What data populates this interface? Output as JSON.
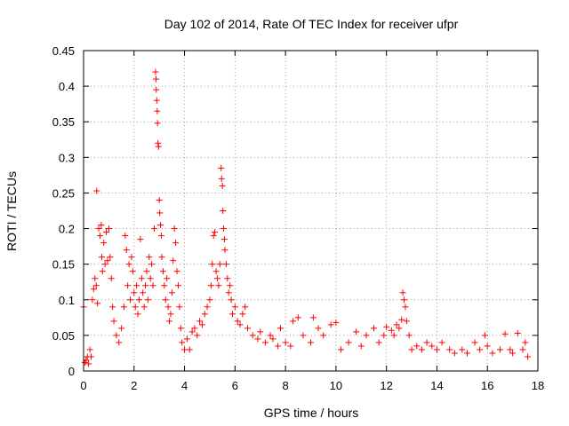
{
  "chart_data": {
    "type": "scatter",
    "title": "Day 102 of 2014, Rate Of TEC Index for receiver ufpr",
    "xlabel": "GPS time / hours",
    "ylabel": "ROTI / TECUs",
    "xlim": [
      0,
      18
    ],
    "ylim": [
      0,
      0.45
    ],
    "xticks": [
      "0",
      "2",
      "4",
      "6",
      "8",
      "10",
      "12",
      "14",
      "16",
      "18"
    ],
    "yticks": [
      "0",
      "0.05",
      "0.1",
      "0.15",
      "0.2",
      "0.25",
      "0.3",
      "0.35",
      "0.4",
      "0.45"
    ],
    "grid": true,
    "marker": "+",
    "color": "#ff0000",
    "series": [
      {
        "name": "ROTI",
        "points": [
          [
            0.0,
            0.09
          ],
          [
            0.05,
            0.012
          ],
          [
            0.1,
            0.015
          ],
          [
            0.15,
            0.02
          ],
          [
            0.2,
            0.01
          ],
          [
            0.25,
            0.03
          ],
          [
            0.3,
            0.02
          ],
          [
            0.35,
            0.1
          ],
          [
            0.4,
            0.115
          ],
          [
            0.45,
            0.13
          ],
          [
            0.5,
            0.12
          ],
          [
            0.52,
            0.253
          ],
          [
            0.55,
            0.095
          ],
          [
            0.6,
            0.2
          ],
          [
            0.65,
            0.19
          ],
          [
            0.7,
            0.205
          ],
          [
            0.72,
            0.16
          ],
          [
            0.75,
            0.14
          ],
          [
            0.8,
            0.18
          ],
          [
            0.85,
            0.15
          ],
          [
            0.9,
            0.195
          ],
          [
            0.95,
            0.155
          ],
          [
            1.0,
            0.2
          ],
          [
            1.05,
            0.16
          ],
          [
            1.1,
            0.13
          ],
          [
            1.15,
            0.09
          ],
          [
            1.2,
            0.07
          ],
          [
            1.3,
            0.05
          ],
          [
            1.4,
            0.04
          ],
          [
            1.5,
            0.06
          ],
          [
            1.6,
            0.09
          ],
          [
            1.65,
            0.19
          ],
          [
            1.7,
            0.17
          ],
          [
            1.75,
            0.12
          ],
          [
            1.8,
            0.15
          ],
          [
            1.85,
            0.1
          ],
          [
            1.9,
            0.16
          ],
          [
            1.95,
            0.14
          ],
          [
            2.0,
            0.11
          ],
          [
            2.05,
            0.09
          ],
          [
            2.1,
            0.12
          ],
          [
            2.15,
            0.08
          ],
          [
            2.2,
            0.1
          ],
          [
            2.25,
            0.185
          ],
          [
            2.3,
            0.13
          ],
          [
            2.35,
            0.11
          ],
          [
            2.4,
            0.09
          ],
          [
            2.45,
            0.12
          ],
          [
            2.5,
            0.14
          ],
          [
            2.55,
            0.1
          ],
          [
            2.6,
            0.16
          ],
          [
            2.65,
            0.13
          ],
          [
            2.7,
            0.15
          ],
          [
            2.75,
            0.12
          ],
          [
            2.8,
            0.2
          ],
          [
            2.85,
            0.42
          ],
          [
            2.87,
            0.41
          ],
          [
            2.88,
            0.395
          ],
          [
            2.9,
            0.38
          ],
          [
            2.92,
            0.365
          ],
          [
            2.93,
            0.348
          ],
          [
            2.95,
            0.32
          ],
          [
            2.97,
            0.315
          ],
          [
            3.0,
            0.24
          ],
          [
            3.02,
            0.222
          ],
          [
            3.05,
            0.205
          ],
          [
            3.08,
            0.19
          ],
          [
            3.1,
            0.16
          ],
          [
            3.15,
            0.14
          ],
          [
            3.2,
            0.12
          ],
          [
            3.25,
            0.1
          ],
          [
            3.3,
            0.13
          ],
          [
            3.35,
            0.09
          ],
          [
            3.4,
            0.07
          ],
          [
            3.45,
            0.08
          ],
          [
            3.5,
            0.11
          ],
          [
            3.55,
            0.155
          ],
          [
            3.6,
            0.2
          ],
          [
            3.65,
            0.18
          ],
          [
            3.7,
            0.14
          ],
          [
            3.75,
            0.12
          ],
          [
            3.8,
            0.09
          ],
          [
            3.85,
            0.06
          ],
          [
            3.9,
            0.04
          ],
          [
            4.0,
            0.03
          ],
          [
            4.1,
            0.045
          ],
          [
            4.2,
            0.03
          ],
          [
            4.3,
            0.055
          ],
          [
            4.4,
            0.06
          ],
          [
            4.5,
            0.05
          ],
          [
            4.6,
            0.07
          ],
          [
            4.7,
            0.065
          ],
          [
            4.8,
            0.08
          ],
          [
            4.9,
            0.09
          ],
          [
            5.0,
            0.1
          ],
          [
            5.05,
            0.12
          ],
          [
            5.1,
            0.15
          ],
          [
            5.15,
            0.19
          ],
          [
            5.2,
            0.195
          ],
          [
            5.25,
            0.14
          ],
          [
            5.3,
            0.13
          ],
          [
            5.35,
            0.12
          ],
          [
            5.4,
            0.15
          ],
          [
            5.45,
            0.285
          ],
          [
            5.47,
            0.27
          ],
          [
            5.5,
            0.26
          ],
          [
            5.52,
            0.225
          ],
          [
            5.55,
            0.2
          ],
          [
            5.58,
            0.185
          ],
          [
            5.6,
            0.17
          ],
          [
            5.65,
            0.15
          ],
          [
            5.7,
            0.13
          ],
          [
            5.75,
            0.11
          ],
          [
            5.8,
            0.12
          ],
          [
            5.85,
            0.1
          ],
          [
            5.9,
            0.08
          ],
          [
            6.0,
            0.09
          ],
          [
            6.1,
            0.07
          ],
          [
            6.2,
            0.065
          ],
          [
            6.3,
            0.08
          ],
          [
            6.4,
            0.09
          ],
          [
            6.5,
            0.06
          ],
          [
            6.7,
            0.05
          ],
          [
            6.9,
            0.045
          ],
          [
            7.0,
            0.055
          ],
          [
            7.2,
            0.04
          ],
          [
            7.4,
            0.05
          ],
          [
            7.5,
            0.045
          ],
          [
            7.7,
            0.035
          ],
          [
            7.8,
            0.06
          ],
          [
            8.0,
            0.04
          ],
          [
            8.2,
            0.035
          ],
          [
            8.3,
            0.07
          ],
          [
            8.5,
            0.075
          ],
          [
            8.7,
            0.05
          ],
          [
            9.0,
            0.04
          ],
          [
            9.1,
            0.075
          ],
          [
            9.3,
            0.06
          ],
          [
            9.5,
            0.05
          ],
          [
            9.8,
            0.065
          ],
          [
            10.0,
            0.068
          ],
          [
            10.2,
            0.03
          ],
          [
            10.5,
            0.04
          ],
          [
            10.8,
            0.055
          ],
          [
            11.0,
            0.035
          ],
          [
            11.2,
            0.05
          ],
          [
            11.5,
            0.06
          ],
          [
            11.7,
            0.04
          ],
          [
            11.9,
            0.05
          ],
          [
            12.0,
            0.062
          ],
          [
            12.2,
            0.057
          ],
          [
            12.3,
            0.05
          ],
          [
            12.4,
            0.065
          ],
          [
            12.5,
            0.06
          ],
          [
            12.6,
            0.072
          ],
          [
            12.65,
            0.11
          ],
          [
            12.7,
            0.1
          ],
          [
            12.75,
            0.09
          ],
          [
            12.8,
            0.07
          ],
          [
            12.9,
            0.05
          ],
          [
            13.0,
            0.03
          ],
          [
            13.2,
            0.035
          ],
          [
            13.4,
            0.03
          ],
          [
            13.6,
            0.04
          ],
          [
            13.8,
            0.035
          ],
          [
            14.0,
            0.03
          ],
          [
            14.2,
            0.04
          ],
          [
            14.5,
            0.03
          ],
          [
            14.7,
            0.025
          ],
          [
            15.0,
            0.03
          ],
          [
            15.2,
            0.025
          ],
          [
            15.5,
            0.04
          ],
          [
            15.7,
            0.03
          ],
          [
            15.9,
            0.05
          ],
          [
            16.0,
            0.035
          ],
          [
            16.2,
            0.025
          ],
          [
            16.5,
            0.03
          ],
          [
            16.7,
            0.052
          ],
          [
            16.9,
            0.03
          ],
          [
            17.0,
            0.025
          ],
          [
            17.2,
            0.053
          ],
          [
            17.4,
            0.03
          ],
          [
            17.5,
            0.04
          ],
          [
            17.6,
            0.02
          ]
        ]
      }
    ]
  }
}
